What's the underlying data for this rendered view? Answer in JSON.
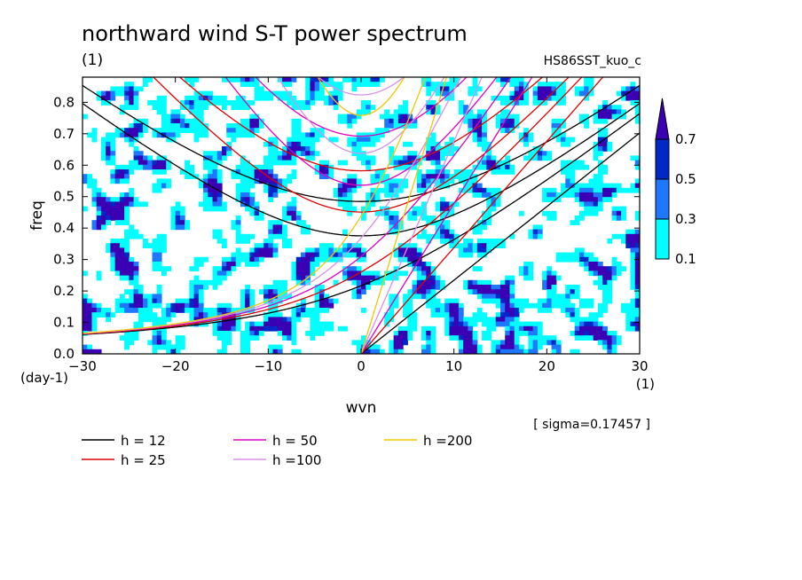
{
  "chart_data": {
    "type": "heatmap",
    "title": "northward wind S-T power spectrum",
    "subtitle": "(1)",
    "run_label": "HS86SST_kuo_c",
    "xlabel": "wvn",
    "ylabel": "freq",
    "x_unit": "(1)",
    "y_unit": "(day-1)",
    "xlim": [
      -30,
      30
    ],
    "ylim": [
      0,
      0.88
    ],
    "x_ticks": [
      -30,
      -20,
      -10,
      0,
      10,
      20,
      30
    ],
    "y_ticks": [
      0.0,
      0.1,
      0.2,
      0.3,
      0.4,
      0.5,
      0.6,
      0.7,
      0.8
    ],
    "sigma_text": "[ sigma=0.17457 ]",
    "colorbar": {
      "levels": [
        "0.1",
        "0.3",
        "0.5",
        "0.7"
      ],
      "colors": [
        "#00ffff",
        "#1e78ff",
        "#0028c8",
        "#3c00b4"
      ]
    },
    "dispersion_curves": [
      {
        "name": "h = 12",
        "h": 12,
        "color": "#000000"
      },
      {
        "name": "h = 25",
        "h": 25,
        "color": "#e00000"
      },
      {
        "name": "h = 50",
        "h": 50,
        "color": "#e000c0"
      },
      {
        "name": "h =100",
        "h": 100,
        "color": "#d890e8"
      },
      {
        "name": "h =200",
        "h": 200,
        "color": "#f0c800"
      }
    ]
  }
}
